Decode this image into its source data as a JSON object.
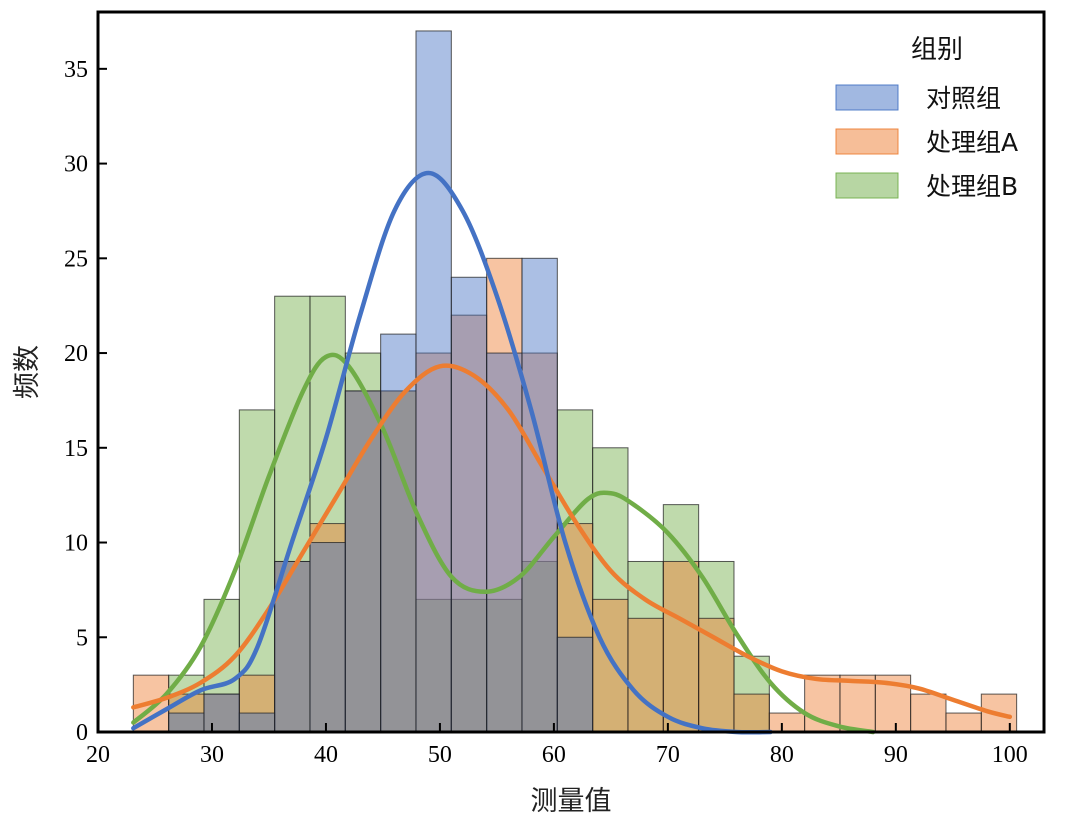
{
  "chart_data": {
    "type": "histogram",
    "title": "",
    "xlabel": "测量值",
    "ylabel": "频数",
    "xlim": [
      20,
      103
    ],
    "ylim": [
      0,
      38
    ],
    "x_ticks": [
      20,
      30,
      40,
      50,
      60,
      70,
      80,
      90,
      100
    ],
    "y_ticks": [
      0,
      5,
      10,
      15,
      20,
      25,
      30,
      35
    ],
    "bins": [
      23.1,
      26.2,
      29.3,
      32.4,
      35.5,
      38.6,
      41.7,
      44.8,
      47.9,
      51.0,
      54.1,
      57.2,
      60.3,
      63.4,
      66.5,
      69.6,
      72.7,
      75.8,
      78.9,
      82.0,
      85.1,
      88.2,
      91.3,
      94.4,
      97.5,
      100.6
    ],
    "legend": {
      "title": "组别",
      "position": "top-right"
    },
    "series": [
      {
        "name": "对照组",
        "color": "#4472c4",
        "counts": [
          0,
          1,
          2,
          1,
          9,
          10,
          18,
          21,
          37,
          24,
          20,
          25,
          5,
          0,
          0,
          0,
          0,
          0,
          0,
          0,
          0,
          0,
          0,
          0,
          0
        ],
        "kde": [
          [
            23.1,
            0.2
          ],
          [
            26,
            1.2
          ],
          [
            29,
            2.2
          ],
          [
            32,
            2.8
          ],
          [
            34,
            4.5
          ],
          [
            37,
            10
          ],
          [
            40,
            15.5
          ],
          [
            43,
            22
          ],
          [
            46,
            27.5
          ],
          [
            49,
            29.5
          ],
          [
            52,
            27.5
          ],
          [
            55,
            23
          ],
          [
            58,
            17
          ],
          [
            61,
            10
          ],
          [
            64,
            5
          ],
          [
            67,
            2.2
          ],
          [
            70,
            0.8
          ],
          [
            73,
            0.2
          ],
          [
            76,
            0
          ],
          [
            79,
            0
          ]
        ]
      },
      {
        "name": "处理组A",
        "color": "#ed7d31",
        "counts": [
          3,
          2,
          2,
          3,
          9,
          11,
          18,
          18,
          20,
          22,
          25,
          20,
          11,
          7,
          6,
          9,
          6,
          2,
          1,
          3,
          3,
          3,
          2,
          1,
          2
        ],
        "kde": [
          [
            23.1,
            1.3
          ],
          [
            26,
            1.8
          ],
          [
            29,
            2.6
          ],
          [
            32,
            4
          ],
          [
            35,
            6.5
          ],
          [
            38,
            9.5
          ],
          [
            41,
            12.5
          ],
          [
            44,
            15.5
          ],
          [
            47,
            18
          ],
          [
            50,
            19.3
          ],
          [
            53,
            18.8
          ],
          [
            56,
            17
          ],
          [
            59,
            14
          ],
          [
            62,
            11
          ],
          [
            65,
            8.5
          ],
          [
            68,
            7
          ],
          [
            71,
            6
          ],
          [
            74,
            5
          ],
          [
            77,
            4
          ],
          [
            80,
            3.2
          ],
          [
            83,
            2.8
          ],
          [
            86,
            2.7
          ],
          [
            89,
            2.6
          ],
          [
            92,
            2.3
          ],
          [
            95,
            1.7
          ],
          [
            98,
            1.1
          ],
          [
            100,
            0.8
          ]
        ]
      },
      {
        "name": "处理组B",
        "color": "#70ad47",
        "counts": [
          0,
          3,
          7,
          17,
          23,
          23,
          20,
          18,
          7,
          7,
          7,
          9,
          17,
          15,
          9,
          12,
          9,
          4,
          0,
          0,
          0,
          0,
          0,
          0,
          0
        ],
        "kde": [
          [
            23.1,
            0.5
          ],
          [
            26,
            2
          ],
          [
            29,
            4.5
          ],
          [
            32,
            8.5
          ],
          [
            35,
            13.5
          ],
          [
            38,
            18
          ],
          [
            40,
            19.8
          ],
          [
            42,
            19.3
          ],
          [
            45,
            16
          ],
          [
            48,
            11.5
          ],
          [
            51,
            8.2
          ],
          [
            54,
            7.4
          ],
          [
            57,
            8.2
          ],
          [
            60,
            10.3
          ],
          [
            63,
            12.3
          ],
          [
            65,
            12.6
          ],
          [
            67,
            12
          ],
          [
            70,
            10.5
          ],
          [
            73,
            8.2
          ],
          [
            76,
            5.2
          ],
          [
            79,
            2.6
          ],
          [
            82,
            1
          ],
          [
            85,
            0.3
          ],
          [
            88,
            0
          ]
        ]
      }
    ]
  }
}
